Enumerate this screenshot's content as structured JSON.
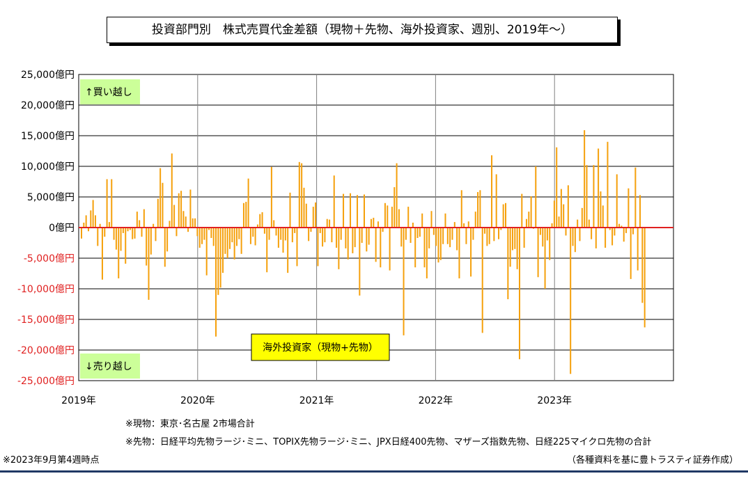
{
  "chart_data": {
    "type": "bar",
    "title": "投資部門別　株式売買代金差額（現物＋先物、海外投資家、週別、2019年～）",
    "y_ticks": [
      "25,000億円",
      "20,000億円",
      "15,000億円",
      "10,000億円",
      "5,000億円",
      "0億円",
      "-5,000億円",
      "-10,000億円",
      "-15,000億円",
      "-20,000億円",
      "-25,000億円"
    ],
    "y_tick_values": [
      25000,
      20000,
      15000,
      10000,
      5000,
      0,
      -5000,
      -10000,
      -15000,
      -20000,
      -25000
    ],
    "ylim": [
      -25000,
      25000
    ],
    "x_ticks": [
      "2019年",
      "2020年",
      "2021年",
      "2022年",
      "2023年"
    ],
    "xlim": [
      2019,
      2024
    ],
    "grid": true,
    "colors": {
      "bar": "#f5a00b",
      "zero_line": "#e02020",
      "negative_label": "#e02020",
      "grid": "#000000"
    },
    "annotations": {
      "buy": "↑買い越し",
      "sell": "↓売り越し",
      "series_label": "海外投資家（現物+先物）"
    },
    "series": [
      {
        "values": [
          -1800,
          800,
          2000,
          -600,
          2800,
          4500,
          2000,
          -3000,
          600,
          -8500,
          -1500,
          7900,
          900,
          7900,
          -2000,
          -3600,
          -8300,
          -3800,
          -900,
          -5900,
          -600,
          -400,
          -1900,
          -1800,
          2600,
          1200,
          -1500,
          3000,
          -6200,
          -11800,
          -4400,
          600,
          -2200,
          4700,
          9700,
          7300,
          -6400,
          -3900,
          1100,
          12100,
          3700,
          -1400,
          5600,
          6000,
          2700,
          1800,
          -700,
          6200,
          1500,
          1500,
          -1400,
          -3300,
          -2700,
          -2000,
          -7800,
          -400,
          -1700,
          -3000,
          -17800,
          -11000,
          -9800,
          -7400,
          -4300,
          -5000,
          -3500,
          -2400,
          -5200,
          -3000,
          -1900,
          -4300,
          4000,
          4200,
          8000,
          -2700,
          -1500,
          -2900,
          500,
          2200,
          2500,
          -1000,
          -7300,
          -2000,
          9900,
          1200,
          -1300,
          -3300,
          -2000,
          -4100,
          -2100,
          -7400,
          5700,
          -2400,
          -900,
          -6300,
          10700,
          10500,
          6500,
          3900,
          -2200,
          -700,
          3400,
          4100,
          -6300,
          -900,
          -3100,
          -2400,
          1400,
          1300,
          -2400,
          8500,
          -3300,
          -6800,
          -2000,
          5500,
          -3400,
          -5200,
          5600,
          -4200,
          -3200,
          5300,
          -11100,
          -2500,
          5400,
          -3900,
          -2800,
          1400,
          1600,
          -5600,
          1000,
          -6500,
          -700,
          4000,
          3600,
          -7000,
          3400,
          6600,
          10500,
          3000,
          -3100,
          -17600,
          -2000,
          3400,
          -2500,
          800,
          -6500,
          -1700,
          -1500,
          2300,
          -6500,
          -8300,
          -3400,
          2700,
          -1200,
          -3000,
          -5700,
          -5300,
          -2700,
          2300,
          -2700,
          -3200,
          -2000,
          900,
          -3700,
          -8300,
          6100,
          700,
          -2700,
          1000,
          -8000,
          -2000,
          2600,
          5800,
          6100,
          -17200,
          -1000,
          -3000,
          -2700,
          11800,
          -2200,
          8700,
          -1900,
          -400,
          3800,
          4000,
          -11700,
          -6400,
          -3700,
          -3500,
          -6800,
          -21500,
          5500,
          -3300,
          1400,
          2600,
          5100,
          -200,
          10000,
          -8100,
          -1200,
          -3100,
          -10000,
          -2100,
          -5300,
          700,
          4400,
          13100,
          1800,
          6300,
          3800,
          -1300,
          6900,
          -23900,
          -3000,
          -4000,
          1300,
          -2200,
          3200,
          15900,
          10200,
          1300,
          -1900,
          10200,
          -3400,
          12900,
          5900,
          3600,
          -3300,
          14000,
          -400,
          -2900,
          -1300,
          8700,
          600,
          300,
          -2300,
          -900,
          6400,
          -8400,
          -1100,
          9800,
          -7000,
          5300,
          -12300,
          -16300
        ]
      }
    ]
  },
  "notes": {
    "spot": "※現物：東京･名古屋 2市場合計",
    "futures": "※先物：日経平均先物ラージ･ミニ、TOPIX先物ラージ･ミニ、JPX日経400先物、マザーズ指数先物、日経225マイクロ先物の合計",
    "as_of": "※2023年9月第4週時点",
    "source": "（各種資料を基に豊トラスティ証券作成）"
  }
}
